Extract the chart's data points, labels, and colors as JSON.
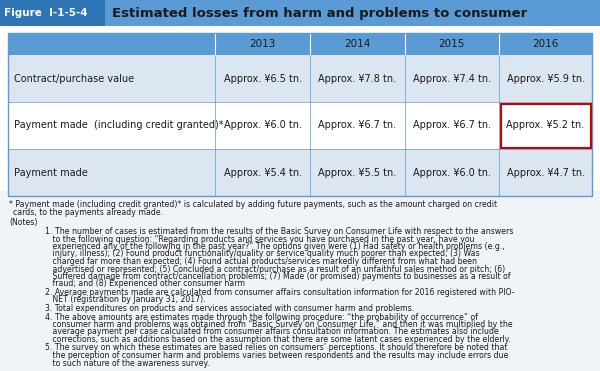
{
  "figure_label": "Figure  I-1-5-4",
  "title": "Estimated losses from harm and problems to consumer",
  "header_bg": "#5b9bd5",
  "header_label_bg": "#2e75b6",
  "row_bg_odd": "#dce6f1",
  "row_bg_even": "#ffffff",
  "highlight_border": "#cc0000",
  "columns": [
    "",
    "2013",
    "2014",
    "2015",
    "2016"
  ],
  "rows": [
    {
      "label": "Contract/purchase value",
      "values": [
        "Approx. ¥6.5 tn.",
        "Approx. ¥7.8 tn.",
        "Approx. ¥7.4 tn.",
        "Approx. ¥5.9 tn."
      ],
      "highlight_col": null
    },
    {
      "label": "Payment made  (including credit granted)*",
      "values": [
        "Approx. ¥6.0 tn.",
        "Approx. ¥6.7 tn.",
        "Approx. ¥6.7 tn.",
        "Approx. ¥5.2 tn."
      ],
      "highlight_col": 3
    },
    {
      "label": "Payment made",
      "values": [
        "Approx. ¥5.4 tn.",
        "Approx. ¥5.5 tn.",
        "Approx. ¥6.0 tn.",
        "Approx. ¥4.7 tn."
      ],
      "highlight_col": null
    }
  ],
  "footnote_star": "* Payment made (including credit granted)* is calculated by adding future payments, such as the amount charged on credit cards, to the payments already made.",
  "notes_label": "(Notes)",
  "notes": [
    "1. The number of cases is estimated from the results of the Basic Survey on Consumer Life with respect to the answers to the following question: “Regarding products and services you have purchased in the past year, have you experienced any of the following in the past year?” The options given were (1) Had safety or health problems (e.g., injury, illness); (2) Found product functionality/quality or service quality much poorer than expected; (3) Was charged far more than expected; (4) Found actual products/services markedly different from what had been advertised or represented; (5) Concluded a contract/purchase as a result of an unfaithful sales method or pitch; (6) Suffered damage from contract/cancellation problems; (7) Made (or promised) payments to businesses as a result of fraud; and (8) Experienced other consumer harm",
    "2. Average payments made are calculated from consumer affairs consultation information for 2016 registered with PIO-NET (registration by January 31, 2017).",
    "3. Total expenditures on products and services associated with consumer harm and problems.",
    "4. The above amounts are estimates made through the following procedure: “the probability of occurrence” of consumer harm and problems was obtained from “Basic Survey on Consumer Life,” and then it was multiplied by the average payment per case calculated from consumer affairs consultation information. The estimates also include corrections, such as additions based on the assumption that there are some latent cases experienced by the elderly.",
    "5. The survey on which these estimates are based relies on consumers’ perceptions. It should therefore be noted that the perception of consumer harm and problems varies between respondents and the results may include errors due to such nature of the awareness survey."
  ],
  "bg_color": "#f0f4f8",
  "outer_bg": "#ffffff",
  "outer_border_color": "#5b9bd5",
  "text_color": "#1a1a1a",
  "header_text_color": "#1a1a1a",
  "note_fontsize": 5.6,
  "cell_fontsize": 7.0,
  "header_fontsize": 7.5,
  "label_fontsize": 7.0,
  "title_fontsize": 9.5,
  "fig_label_fontsize": 7.5
}
